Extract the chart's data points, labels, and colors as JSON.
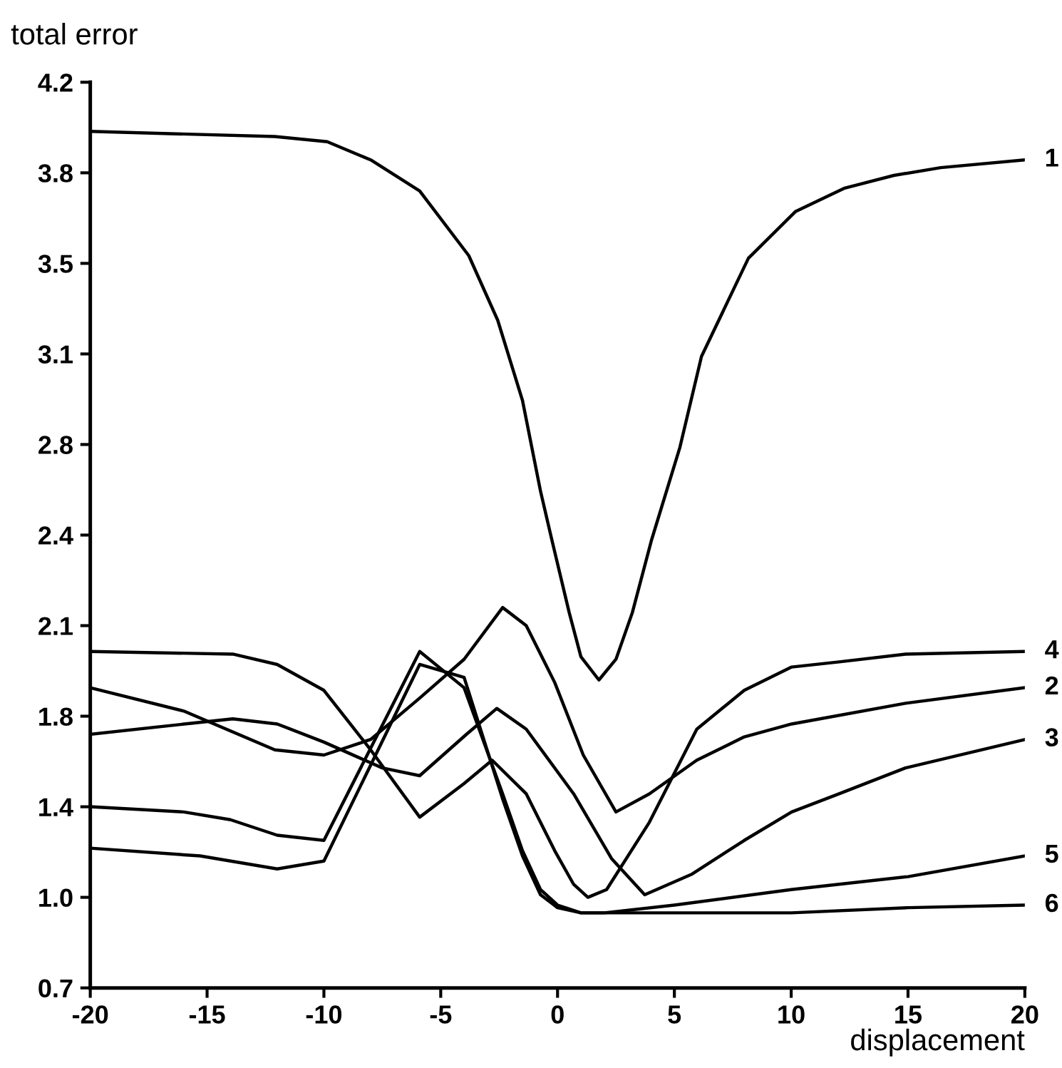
{
  "chart_data": {
    "type": "line",
    "xlabel": "displacement",
    "ylabel": "total error",
    "xlim": [
      -20,
      20
    ],
    "xticks": [
      -20,
      -15,
      -10,
      -5,
      0,
      5,
      10,
      15,
      20
    ],
    "ylim": [
      0.7,
      4.2
    ],
    "yticks": [
      {
        "value": 0.7,
        "label": "0.7"
      },
      {
        "value": 1.05,
        "label": "1.0"
      },
      {
        "value": 1.4,
        "label": "1.4"
      },
      {
        "value": 1.75,
        "label": "1.8"
      },
      {
        "value": 2.1,
        "label": "2.1"
      },
      {
        "value": 2.45,
        "label": "2.4"
      },
      {
        "value": 2.8,
        "label": "2.8"
      },
      {
        "value": 3.15,
        "label": "3.1"
      },
      {
        "value": 3.5,
        "label": "3.5"
      },
      {
        "value": 3.85,
        "label": "3.8"
      },
      {
        "value": 4.2,
        "label": "4.2"
      }
    ],
    "grid": false,
    "legend": false,
    "marker": "none",
    "line_style": "solid",
    "series": [
      {
        "name": "1",
        "color": "#000000",
        "x": [
          -20,
          -12.1,
          -9.86,
          -8.0,
          -5.9,
          -3.8,
          -2.56,
          -1.5,
          -0.73,
          -0.24,
          0.5,
          1.0,
          1.77,
          2.5,
          3.2,
          4.02,
          5.24,
          6.16,
          8.17,
          10.18,
          12.26,
          14.4,
          16.4,
          20
        ],
        "values": [
          4.01,
          3.99,
          3.97,
          3.9,
          3.78,
          3.53,
          3.28,
          2.97,
          2.62,
          2.43,
          2.15,
          1.98,
          1.89,
          1.97,
          2.15,
          2.43,
          2.79,
          3.14,
          3.52,
          3.7,
          3.79,
          3.84,
          3.87,
          3.9
        ]
      },
      {
        "name": "2",
        "color": "#000000",
        "x": [
          -20,
          -16,
          -12.1,
          -10,
          -8,
          -5.9,
          -4,
          -2.35,
          -1.34,
          -0.12,
          1.1,
          2.5,
          3.93,
          5.96,
          7.99,
          10.02,
          14.9,
          20
        ],
        "values": [
          1.86,
          1.77,
          1.62,
          1.6,
          1.66,
          1.82,
          1.97,
          2.17,
          2.1,
          1.88,
          1.6,
          1.38,
          1.45,
          1.58,
          1.67,
          1.72,
          1.8,
          1.86
        ]
      },
      {
        "name": "3",
        "color": "#000000",
        "x": [
          -20,
          -13.9,
          -12,
          -10,
          -7.5,
          -5.9,
          -3.9,
          -2.6,
          -1.34,
          0.69,
          2.31,
          3.73,
          5.76,
          7.99,
          10.02,
          12.05,
          14.89,
          20
        ],
        "values": [
          1.68,
          1.74,
          1.72,
          1.65,
          1.55,
          1.52,
          1.68,
          1.78,
          1.7,
          1.45,
          1.2,
          1.06,
          1.14,
          1.27,
          1.38,
          1.45,
          1.55,
          1.66
        ]
      },
      {
        "name": "4",
        "color": "#000000",
        "x": [
          -20,
          -13.9,
          -12,
          -10,
          -8,
          -5.9,
          -4,
          -2.8,
          -1.34,
          -0.12,
          0.69,
          1.3,
          2.1,
          3.93,
          5.96,
          7.99,
          10.02,
          12.05,
          14.9,
          20
        ],
        "values": [
          2.0,
          1.99,
          1.95,
          1.85,
          1.62,
          1.36,
          1.49,
          1.58,
          1.45,
          1.23,
          1.1,
          1.05,
          1.08,
          1.34,
          1.7,
          1.85,
          1.94,
          1.96,
          1.99,
          2.0
        ]
      },
      {
        "name": "5",
        "color": "#000000",
        "x": [
          -20,
          -16,
          -14,
          -12,
          -10,
          -5.9,
          -4,
          -2.35,
          -1.5,
          -0.73,
          0,
          1,
          2,
          5,
          10,
          15,
          20
        ],
        "values": [
          1.4,
          1.38,
          1.35,
          1.29,
          1.27,
          2.0,
          1.86,
          1.45,
          1.23,
          1.08,
          1.02,
          0.99,
          0.99,
          1.02,
          1.08,
          1.13,
          1.21
        ]
      },
      {
        "name": "6",
        "color": "#000000",
        "x": [
          -20,
          -15.3,
          -12,
          -10,
          -5.9,
          -4,
          -2.35,
          -1.5,
          -0.73,
          0,
          1,
          2,
          5,
          10,
          15,
          20
        ],
        "values": [
          1.24,
          1.21,
          1.16,
          1.19,
          1.95,
          1.9,
          1.43,
          1.21,
          1.06,
          1.01,
          0.99,
          0.99,
          0.99,
          0.99,
          1.01,
          1.02
        ]
      }
    ]
  }
}
